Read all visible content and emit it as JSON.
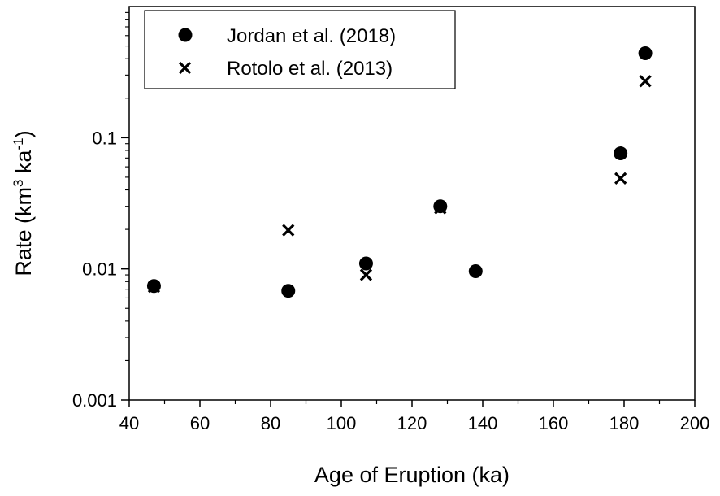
{
  "chart_data": {
    "type": "scatter",
    "title": "",
    "xlabel": "Age of Eruption (ka)",
    "ylabel": {
      "parts": [
        "Rate (km",
        "3",
        " ka",
        "-1",
        ")"
      ]
    },
    "xlim": [
      40,
      200
    ],
    "ylim": [
      0.001,
      1
    ],
    "yscale": "log",
    "grid": false,
    "legend_position": "top-left",
    "xticks": [
      {
        "value": 40,
        "label": "40"
      },
      {
        "value": 60,
        "label": "60"
      },
      {
        "value": 80,
        "label": "80"
      },
      {
        "value": 100,
        "label": "100"
      },
      {
        "value": 120,
        "label": "120"
      },
      {
        "value": 140,
        "label": "140"
      },
      {
        "value": 160,
        "label": "160"
      },
      {
        "value": 180,
        "label": "180"
      },
      {
        "value": 200,
        "label": "200"
      }
    ],
    "yticks": [
      {
        "value": 0.001,
        "label": "0.001"
      },
      {
        "value": 0.01,
        "label": "0.01"
      },
      {
        "value": 0.1,
        "label": "0.1"
      }
    ],
    "series": [
      {
        "name": "Jordan et al. (2018)",
        "marker": "circle",
        "color": "#000000",
        "points": [
          {
            "x": 47,
            "y": 0.0074
          },
          {
            "x": 85,
            "y": 0.0068
          },
          {
            "x": 107,
            "y": 0.011
          },
          {
            "x": 128,
            "y": 0.03
          },
          {
            "x": 138,
            "y": 0.0096
          },
          {
            "x": 179,
            "y": 0.076
          },
          {
            "x": 186,
            "y": 0.44
          }
        ]
      },
      {
        "name": "Rotolo et al. (2013)",
        "marker": "x",
        "color": "#000000",
        "points": [
          {
            "x": 47,
            "y": 0.0073
          },
          {
            "x": 85,
            "y": 0.0197
          },
          {
            "x": 107,
            "y": 0.009
          },
          {
            "x": 128,
            "y": 0.029
          },
          {
            "x": 179,
            "y": 0.049
          },
          {
            "x": 186,
            "y": 0.27
          }
        ]
      }
    ]
  }
}
